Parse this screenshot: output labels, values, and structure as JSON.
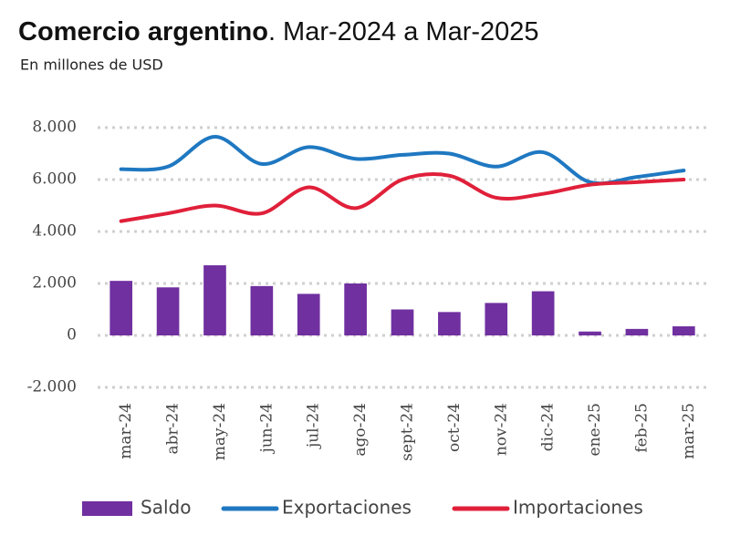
{
  "chart_data": {
    "type": "bar",
    "title": "Comercio argentino",
    "title_suffix": ". Mar-2024 a Mar-2025",
    "subtitle": "En millones de USD",
    "categories": [
      "mar-24",
      "abr-24",
      "may-24",
      "jun-24",
      "jul-24",
      "ago-24",
      "sept-24",
      "oct-24",
      "nov-24",
      "dic-24",
      "ene-25",
      "feb-25",
      "mar-25"
    ],
    "series": [
      {
        "name": "Saldo",
        "type": "bar",
        "color": "#7030a0",
        "values": [
          2100,
          1850,
          2700,
          1900,
          1600,
          2000,
          1000,
          900,
          1250,
          1700,
          150,
          250,
          350
        ]
      },
      {
        "name": "Exportaciones",
        "type": "line",
        "color": "#1f78c1",
        "values": [
          6400,
          6500,
          7650,
          6600,
          7250,
          6800,
          6950,
          7000,
          6500,
          7050,
          5900,
          6100,
          6350
        ]
      },
      {
        "name": "Importaciones",
        "type": "line",
        "color": "#e0203a",
        "values": [
          4400,
          4700,
          5000,
          4700,
          5700,
          4900,
          6000,
          6150,
          5300,
          5450,
          5800,
          5900,
          6000
        ]
      }
    ],
    "ylim": [
      -2000,
      8000
    ],
    "yticks": [
      {
        "value": -2000,
        "label": "-2.000"
      },
      0,
      {
        "value": 2000,
        "label": "2.000"
      },
      {
        "value": 4000,
        "label": "4.000"
      },
      {
        "value": 6000,
        "label": "6.000"
      },
      {
        "value": 8000,
        "label": "8.000"
      }
    ],
    "grid": true,
    "legend": "bottom"
  }
}
